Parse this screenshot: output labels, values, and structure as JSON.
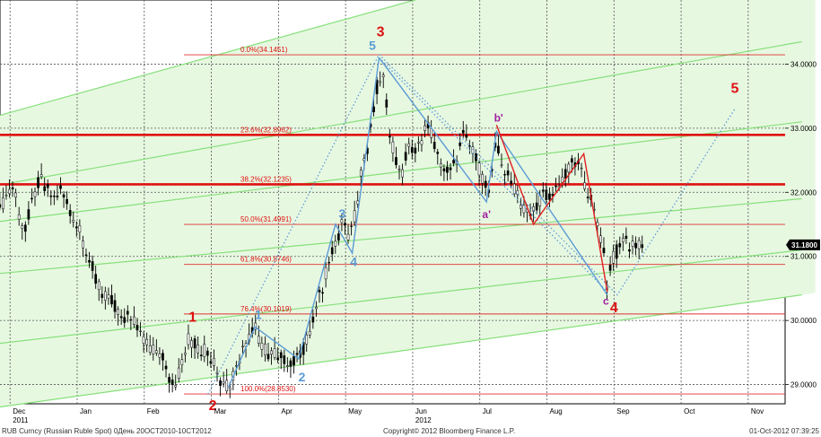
{
  "chart_data": {
    "type": "candlestick",
    "title": "",
    "xlabel": "",
    "ylabel": "",
    "ylim": [
      28.7,
      35.0
    ],
    "y_ticks": [
      "34.0000",
      "33.0000",
      "32.0000",
      "31.0000",
      "30.0000",
      "29.0000"
    ],
    "x_months": [
      {
        "label": "Dec",
        "year": "2011",
        "t": 0
      },
      {
        "label": "Jan",
        "t": 1
      },
      {
        "label": "Feb",
        "t": 2
      },
      {
        "label": "Mar",
        "t": 3
      },
      {
        "label": "Apr",
        "t": 4
      },
      {
        "label": "May",
        "t": 5
      },
      {
        "label": "Jun",
        "year": "2012",
        "t": 6
      },
      {
        "label": "Jul",
        "t": 7
      },
      {
        "label": "Aug",
        "t": 8
      },
      {
        "label": "Sep",
        "t": 9
      },
      {
        "label": "Oct",
        "t": 10
      },
      {
        "label": "Nov",
        "t": 11
      }
    ],
    "last_price": "31.1800",
    "price_path": [
      [
        -0.2,
        31.6
      ],
      [
        -0.08,
        31.9
      ],
      [
        0.05,
        32.1
      ],
      [
        0.12,
        31.7
      ],
      [
        0.2,
        31.4
      ],
      [
        0.27,
        31.6
      ],
      [
        0.35,
        31.95
      ],
      [
        0.45,
        32.2
      ],
      [
        0.55,
        32.05
      ],
      [
        0.65,
        31.9
      ],
      [
        0.75,
        32.05
      ],
      [
        0.85,
        31.85
      ],
      [
        0.95,
        31.6
      ],
      [
        1.05,
        31.35
      ],
      [
        1.15,
        31.05
      ],
      [
        1.25,
        30.75
      ],
      [
        1.35,
        30.45
      ],
      [
        1.45,
        30.35
      ],
      [
        1.55,
        30.25
      ],
      [
        1.65,
        30.0
      ],
      [
        1.75,
        30.05
      ],
      [
        1.85,
        30.0
      ],
      [
        1.95,
        29.75
      ],
      [
        2.05,
        29.6
      ],
      [
        2.15,
        29.55
      ],
      [
        2.25,
        29.5
      ],
      [
        2.35,
        29.2
      ],
      [
        2.45,
        28.9
      ],
      [
        2.55,
        29.3
      ],
      [
        2.65,
        29.7
      ],
      [
        2.75,
        29.65
      ],
      [
        2.85,
        29.55
      ],
      [
        2.95,
        29.5
      ],
      [
        3.05,
        29.3
      ],
      [
        3.15,
        29.05
      ],
      [
        3.25,
        28.95
      ],
      [
        3.35,
        29.2
      ],
      [
        3.45,
        29.5
      ],
      [
        3.55,
        29.75
      ],
      [
        3.65,
        29.9
      ],
      [
        3.75,
        29.6
      ],
      [
        3.85,
        29.5
      ],
      [
        3.95,
        29.45
      ],
      [
        4.05,
        29.4
      ],
      [
        4.15,
        29.35
      ],
      [
        4.25,
        29.4
      ],
      [
        4.35,
        29.5
      ],
      [
        4.45,
        29.8
      ],
      [
        4.55,
        30.2
      ],
      [
        4.65,
        30.5
      ],
      [
        4.75,
        30.9
      ],
      [
        4.85,
        31.2
      ],
      [
        4.95,
        31.5
      ],
      [
        5.05,
        31.3
      ],
      [
        5.15,
        31.7
      ],
      [
        5.25,
        32.4
      ],
      [
        5.35,
        32.8
      ],
      [
        5.45,
        33.6
      ],
      [
        5.55,
        33.85
      ],
      [
        5.65,
        33.0
      ],
      [
        5.75,
        32.5
      ],
      [
        5.85,
        32.3
      ],
      [
        5.95,
        32.8
      ],
      [
        6.05,
        32.6
      ],
      [
        6.15,
        32.9
      ],
      [
        6.25,
        33.05
      ],
      [
        6.35,
        32.6
      ],
      [
        6.45,
        32.4
      ],
      [
        6.55,
        32.3
      ],
      [
        6.65,
        32.5
      ],
      [
        6.75,
        32.9
      ],
      [
        6.85,
        32.7
      ],
      [
        6.95,
        32.5
      ],
      [
        7.05,
        32.2
      ],
      [
        7.15,
        32.0
      ],
      [
        7.25,
        32.85
      ],
      [
        7.35,
        32.35
      ],
      [
        7.45,
        32.2
      ],
      [
        7.55,
        32.0
      ],
      [
        7.65,
        31.7
      ],
      [
        7.75,
        31.6
      ],
      [
        7.85,
        31.8
      ],
      [
        7.95,
        32.0
      ],
      [
        8.05,
        31.9
      ],
      [
        8.15,
        32.1
      ],
      [
        8.25,
        32.2
      ],
      [
        8.35,
        32.4
      ],
      [
        8.45,
        32.5
      ],
      [
        8.55,
        32.2
      ],
      [
        8.65,
        31.9
      ],
      [
        8.75,
        31.5
      ],
      [
        8.85,
        31.1
      ],
      [
        8.9,
        30.5
      ],
      [
        8.95,
        30.9
      ],
      [
        9.05,
        31.1
      ],
      [
        9.15,
        31.3
      ],
      [
        9.25,
        31.15
      ],
      [
        9.35,
        31.2
      ],
      [
        9.42,
        31.18
      ]
    ],
    "fib_levels": [
      {
        "label": "0.0%(34.1451)",
        "value": 34.1451
      },
      {
        "label": "23.6%(32.8962)",
        "value": 32.8962,
        "heavy": true
      },
      {
        "label": "38.2%(32.1235)",
        "value": 32.1235,
        "heavy": true
      },
      {
        "label": "50.0%(31.4991)",
        "value": 31.4991
      },
      {
        "label": "61.8%(30.8746)",
        "value": 30.8746
      },
      {
        "label": "76.4%(30.1019)",
        "value": 30.1019
      },
      {
        "label": "100.0%(28.8530)",
        "value": 28.853
      }
    ],
    "channel_lines": [
      {
        "t1": -0.5,
        "v1": 33.1,
        "t2": 10.5,
        "v2": 36.3
      },
      {
        "t1": -0.5,
        "v1": 32.05,
        "t2": 11.8,
        "v2": 34.35
      },
      {
        "t1": -0.5,
        "v1": 31.5,
        "t2": 11.8,
        "v2": 33.1
      },
      {
        "t1": -0.5,
        "v1": 30.7,
        "t2": 11.8,
        "v2": 31.9
      },
      {
        "t1": -0.5,
        "v1": 29.6,
        "t2": 11.8,
        "v2": 31.1
      },
      {
        "t1": -0.5,
        "v1": 28.6,
        "t2": 11.8,
        "v2": 30.4
      }
    ],
    "wave_minor": [
      [
        3.25,
        28.95
      ],
      [
        3.65,
        29.9
      ],
      [
        4.3,
        29.4
      ],
      [
        4.85,
        31.5
      ],
      [
        5.1,
        31.05
      ],
      [
        5.5,
        34.1
      ]
    ],
    "wave_dotted": [
      [
        2.95,
        28.85
      ],
      [
        5.5,
        34.15
      ],
      [
        9.05,
        30.4
      ],
      [
        10.8,
        33.3
      ]
    ],
    "abc_blue": [
      [
        5.5,
        34.1
      ],
      [
        7.1,
        31.85
      ],
      [
        7.25,
        32.95
      ],
      [
        8.9,
        30.4
      ]
    ],
    "abc_dotted": [
      [
        5.5,
        34.1
      ],
      [
        8.9,
        30.45
      ]
    ],
    "red_zigzag": [
      [
        7.25,
        33.05
      ],
      [
        7.8,
        31.5
      ],
      [
        8.55,
        32.6
      ],
      [
        8.9,
        30.45
      ]
    ],
    "wave_labels": [
      {
        "text": "1",
        "t": 2.72,
        "v": 29.98,
        "color": "#dd1111",
        "size": 16
      },
      {
        "text": "2",
        "t": 3.02,
        "v": 28.6,
        "color": "#dd1111",
        "size": 16
      },
      {
        "text": "3",
        "t": 5.52,
        "v": 34.43,
        "color": "#dd1111",
        "size": 16
      },
      {
        "text": "4",
        "t": 9.0,
        "v": 30.13,
        "color": "#dd1111",
        "size": 16
      },
      {
        "text": "5",
        "t": 10.8,
        "v": 33.55,
        "color": "#dd1111",
        "size": 16
      },
      {
        "text": "1",
        "t": 3.7,
        "v": 30.02,
        "color": "#5b9bd5",
        "size": 14
      },
      {
        "text": "2",
        "t": 4.35,
        "v": 29.05,
        "color": "#5b9bd5",
        "size": 14
      },
      {
        "text": "3",
        "t": 4.95,
        "v": 31.6,
        "color": "#5b9bd5",
        "size": 14
      },
      {
        "text": "4",
        "t": 5.12,
        "v": 30.85,
        "color": "#5b9bd5",
        "size": 14
      },
      {
        "text": "5",
        "t": 5.4,
        "v": 34.22,
        "color": "#5b9bd5",
        "size": 14
      },
      {
        "text": "b'",
        "t": 7.28,
        "v": 33.1,
        "color": "#a020a0",
        "size": 12
      },
      {
        "text": "a'",
        "t": 7.1,
        "v": 31.6,
        "color": "#a020a0",
        "size": 12
      },
      {
        "text": "c",
        "t": 8.88,
        "v": 30.25,
        "color": "#a020a0",
        "size": 12
      }
    ]
  },
  "footer": {
    "security": "RUB Curncy (Russian Ruble Spot) 0День 20OCT2010-10CT2012",
    "copyright": "Copyright© 2012 Bloomberg Finance L.P.",
    "timestamp": "01-Oct-2012 07:39:25"
  }
}
